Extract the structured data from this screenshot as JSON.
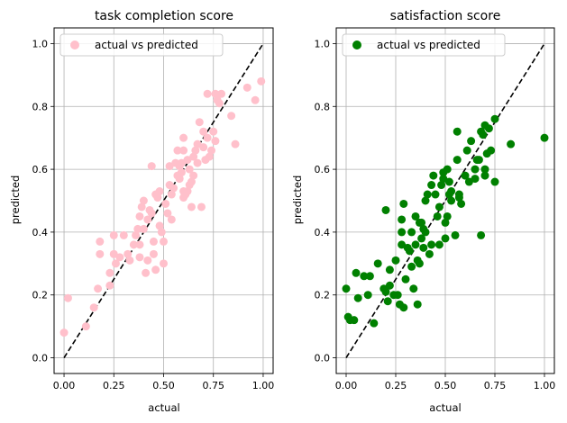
{
  "chart_data": [
    {
      "type": "scatter",
      "title": "task completion score",
      "xlabel": "actual",
      "ylabel": "predicted",
      "xlim": [
        -0.05,
        1.05
      ],
      "ylim": [
        -0.05,
        1.05
      ],
      "xticks": [
        "0.00",
        "0.25",
        "0.50",
        "0.75",
        "1.00"
      ],
      "xtick_values": [
        0,
        0.25,
        0.5,
        0.75,
        1.0
      ],
      "yticks": [
        "0.0",
        "0.2",
        "0.4",
        "0.6",
        "0.8",
        "1.0"
      ],
      "ytick_values": [
        0,
        0.2,
        0.4,
        0.6,
        0.8,
        1.0
      ],
      "grid": true,
      "legend_position": "top-left",
      "series": [
        {
          "name": "actual vs predicted",
          "color": "#ffc0cb",
          "points": [
            [
              0.0,
              0.08
            ],
            [
              0.02,
              0.19
            ],
            [
              0.11,
              0.1
            ],
            [
              0.15,
              0.16
            ],
            [
              0.17,
              0.22
            ],
            [
              0.18,
              0.33
            ],
            [
              0.18,
              0.37
            ],
            [
              0.23,
              0.23
            ],
            [
              0.23,
              0.27
            ],
            [
              0.25,
              0.33
            ],
            [
              0.25,
              0.39
            ],
            [
              0.26,
              0.3
            ],
            [
              0.28,
              0.32
            ],
            [
              0.3,
              0.39
            ],
            [
              0.32,
              0.33
            ],
            [
              0.33,
              0.31
            ],
            [
              0.35,
              0.36
            ],
            [
              0.36,
              0.39
            ],
            [
              0.37,
              0.41
            ],
            [
              0.38,
              0.45
            ],
            [
              0.38,
              0.36
            ],
            [
              0.38,
              0.32
            ],
            [
              0.39,
              0.48
            ],
            [
              0.4,
              0.5
            ],
            [
              0.4,
              0.41
            ],
            [
              0.41,
              0.27
            ],
            [
              0.42,
              0.31
            ],
            [
              0.42,
              0.44
            ],
            [
              0.43,
              0.47
            ],
            [
              0.44,
              0.46
            ],
            [
              0.44,
              0.61
            ],
            [
              0.45,
              0.37
            ],
            [
              0.45,
              0.33
            ],
            [
              0.46,
              0.28
            ],
            [
              0.46,
              0.52
            ],
            [
              0.47,
              0.51
            ],
            [
              0.48,
              0.53
            ],
            [
              0.48,
              0.42
            ],
            [
              0.49,
              0.4
            ],
            [
              0.5,
              0.3
            ],
            [
              0.5,
              0.37
            ],
            [
              0.51,
              0.49
            ],
            [
              0.52,
              0.46
            ],
            [
              0.53,
              0.55
            ],
            [
              0.53,
              0.61
            ],
            [
              0.54,
              0.44
            ],
            [
              0.54,
              0.52
            ],
            [
              0.55,
              0.54
            ],
            [
              0.56,
              0.62
            ],
            [
              0.57,
              0.66
            ],
            [
              0.57,
              0.58
            ],
            [
              0.58,
              0.61
            ],
            [
              0.58,
              0.57
            ],
            [
              0.59,
              0.59
            ],
            [
              0.59,
              0.62
            ],
            [
              0.6,
              0.51
            ],
            [
              0.6,
              0.53
            ],
            [
              0.6,
              0.66
            ],
            [
              0.6,
              0.7
            ],
            [
              0.61,
              0.52
            ],
            [
              0.62,
              0.63
            ],
            [
              0.62,
              0.53
            ],
            [
              0.63,
              0.6
            ],
            [
              0.63,
              0.55
            ],
            [
              0.64,
              0.56
            ],
            [
              0.64,
              0.48
            ],
            [
              0.65,
              0.58
            ],
            [
              0.65,
              0.64
            ],
            [
              0.66,
              0.66
            ],
            [
              0.67,
              0.68
            ],
            [
              0.67,
              0.62
            ],
            [
              0.68,
              0.75
            ],
            [
              0.69,
              0.48
            ],
            [
              0.7,
              0.72
            ],
            [
              0.7,
              0.67
            ],
            [
              0.71,
              0.63
            ],
            [
              0.72,
              0.84
            ],
            [
              0.72,
              0.7
            ],
            [
              0.73,
              0.64
            ],
            [
              0.74,
              0.66
            ],
            [
              0.75,
              0.72
            ],
            [
              0.76,
              0.69
            ],
            [
              0.76,
              0.84
            ],
            [
              0.77,
              0.82
            ],
            [
              0.78,
              0.81
            ],
            [
              0.79,
              0.84
            ],
            [
              0.84,
              0.77
            ],
            [
              0.86,
              0.68
            ],
            [
              0.92,
              0.86
            ],
            [
              0.96,
              0.82
            ],
            [
              0.99,
              0.88
            ]
          ]
        }
      ],
      "reference_line": {
        "from": [
          0,
          0
        ],
        "to": [
          1,
          1
        ],
        "style": "dashed",
        "color": "#000000"
      }
    },
    {
      "type": "scatter",
      "title": "satisfaction score",
      "xlabel": "actual",
      "ylabel": "predicted",
      "xlim": [
        -0.05,
        1.05
      ],
      "ylim": [
        -0.05,
        1.05
      ],
      "xticks": [
        "0.00",
        "0.25",
        "0.50",
        "0.75",
        "1.00"
      ],
      "xtick_values": [
        0,
        0.25,
        0.5,
        0.75,
        1.0
      ],
      "yticks": [
        "0.0",
        "0.2",
        "0.4",
        "0.6",
        "0.8",
        "1.0"
      ],
      "ytick_values": [
        0,
        0.2,
        0.4,
        0.6,
        0.8,
        1.0
      ],
      "grid": true,
      "legend_position": "top-left",
      "series": [
        {
          "name": "actual vs predicted",
          "color": "#008000",
          "points": [
            [
              0.0,
              0.22
            ],
            [
              0.01,
              0.13
            ],
            [
              0.02,
              0.12
            ],
            [
              0.04,
              0.12
            ],
            [
              0.05,
              0.27
            ],
            [
              0.06,
              0.19
            ],
            [
              0.09,
              0.26
            ],
            [
              0.11,
              0.2
            ],
            [
              0.12,
              0.26
            ],
            [
              0.14,
              0.11
            ],
            [
              0.16,
              0.3
            ],
            [
              0.19,
              0.22
            ],
            [
              0.2,
              0.47
            ],
            [
              0.2,
              0.21
            ],
            [
              0.21,
              0.18
            ],
            [
              0.22,
              0.28
            ],
            [
              0.22,
              0.23
            ],
            [
              0.24,
              0.2
            ],
            [
              0.25,
              0.31
            ],
            [
              0.26,
              0.2
            ],
            [
              0.27,
              0.17
            ],
            [
              0.28,
              0.36
            ],
            [
              0.28,
              0.4
            ],
            [
              0.28,
              0.44
            ],
            [
              0.29,
              0.16
            ],
            [
              0.29,
              0.49
            ],
            [
              0.3,
              0.25
            ],
            [
              0.31,
              0.35
            ],
            [
              0.32,
              0.34
            ],
            [
              0.33,
              0.4
            ],
            [
              0.33,
              0.29
            ],
            [
              0.34,
              0.22
            ],
            [
              0.35,
              0.45
            ],
            [
              0.35,
              0.36
            ],
            [
              0.36,
              0.31
            ],
            [
              0.36,
              0.17
            ],
            [
              0.37,
              0.43
            ],
            [
              0.37,
              0.3
            ],
            [
              0.38,
              0.38
            ],
            [
              0.38,
              0.43
            ],
            [
              0.39,
              0.41
            ],
            [
              0.39,
              0.35
            ],
            [
              0.4,
              0.4
            ],
            [
              0.4,
              0.5
            ],
            [
              0.41,
              0.52
            ],
            [
              0.42,
              0.33
            ],
            [
              0.43,
              0.36
            ],
            [
              0.43,
              0.55
            ],
            [
              0.44,
              0.58
            ],
            [
              0.45,
              0.52
            ],
            [
              0.46,
              0.45
            ],
            [
              0.47,
              0.36
            ],
            [
              0.47,
              0.48
            ],
            [
              0.48,
              0.55
            ],
            [
              0.49,
              0.59
            ],
            [
              0.49,
              0.57
            ],
            [
              0.5,
              0.38
            ],
            [
              0.5,
              0.43
            ],
            [
              0.51,
              0.45
            ],
            [
              0.51,
              0.6
            ],
            [
              0.52,
              0.52
            ],
            [
              0.52,
              0.56
            ],
            [
              0.53,
              0.5
            ],
            [
              0.53,
              0.53
            ],
            [
              0.55,
              0.39
            ],
            [
              0.56,
              0.72
            ],
            [
              0.56,
              0.63
            ],
            [
              0.57,
              0.51
            ],
            [
              0.57,
              0.52
            ],
            [
              0.58,
              0.49
            ],
            [
              0.6,
              0.58
            ],
            [
              0.61,
              0.66
            ],
            [
              0.62,
              0.56
            ],
            [
              0.63,
              0.69
            ],
            [
              0.65,
              0.57
            ],
            [
              0.65,
              0.6
            ],
            [
              0.66,
              0.63
            ],
            [
              0.67,
              0.63
            ],
            [
              0.68,
              0.39
            ],
            [
              0.68,
              0.72
            ],
            [
              0.69,
              0.71
            ],
            [
              0.7,
              0.74
            ],
            [
              0.7,
              0.6
            ],
            [
              0.7,
              0.58
            ],
            [
              0.71,
              0.65
            ],
            [
              0.72,
              0.73
            ],
            [
              0.73,
              0.66
            ],
            [
              0.75,
              0.76
            ],
            [
              0.75,
              0.56
            ],
            [
              0.83,
              0.68
            ],
            [
              1.0,
              0.7
            ]
          ]
        }
      ],
      "reference_line": {
        "from": [
          0,
          0
        ],
        "to": [
          1,
          1
        ],
        "style": "dashed",
        "color": "#000000"
      }
    }
  ]
}
